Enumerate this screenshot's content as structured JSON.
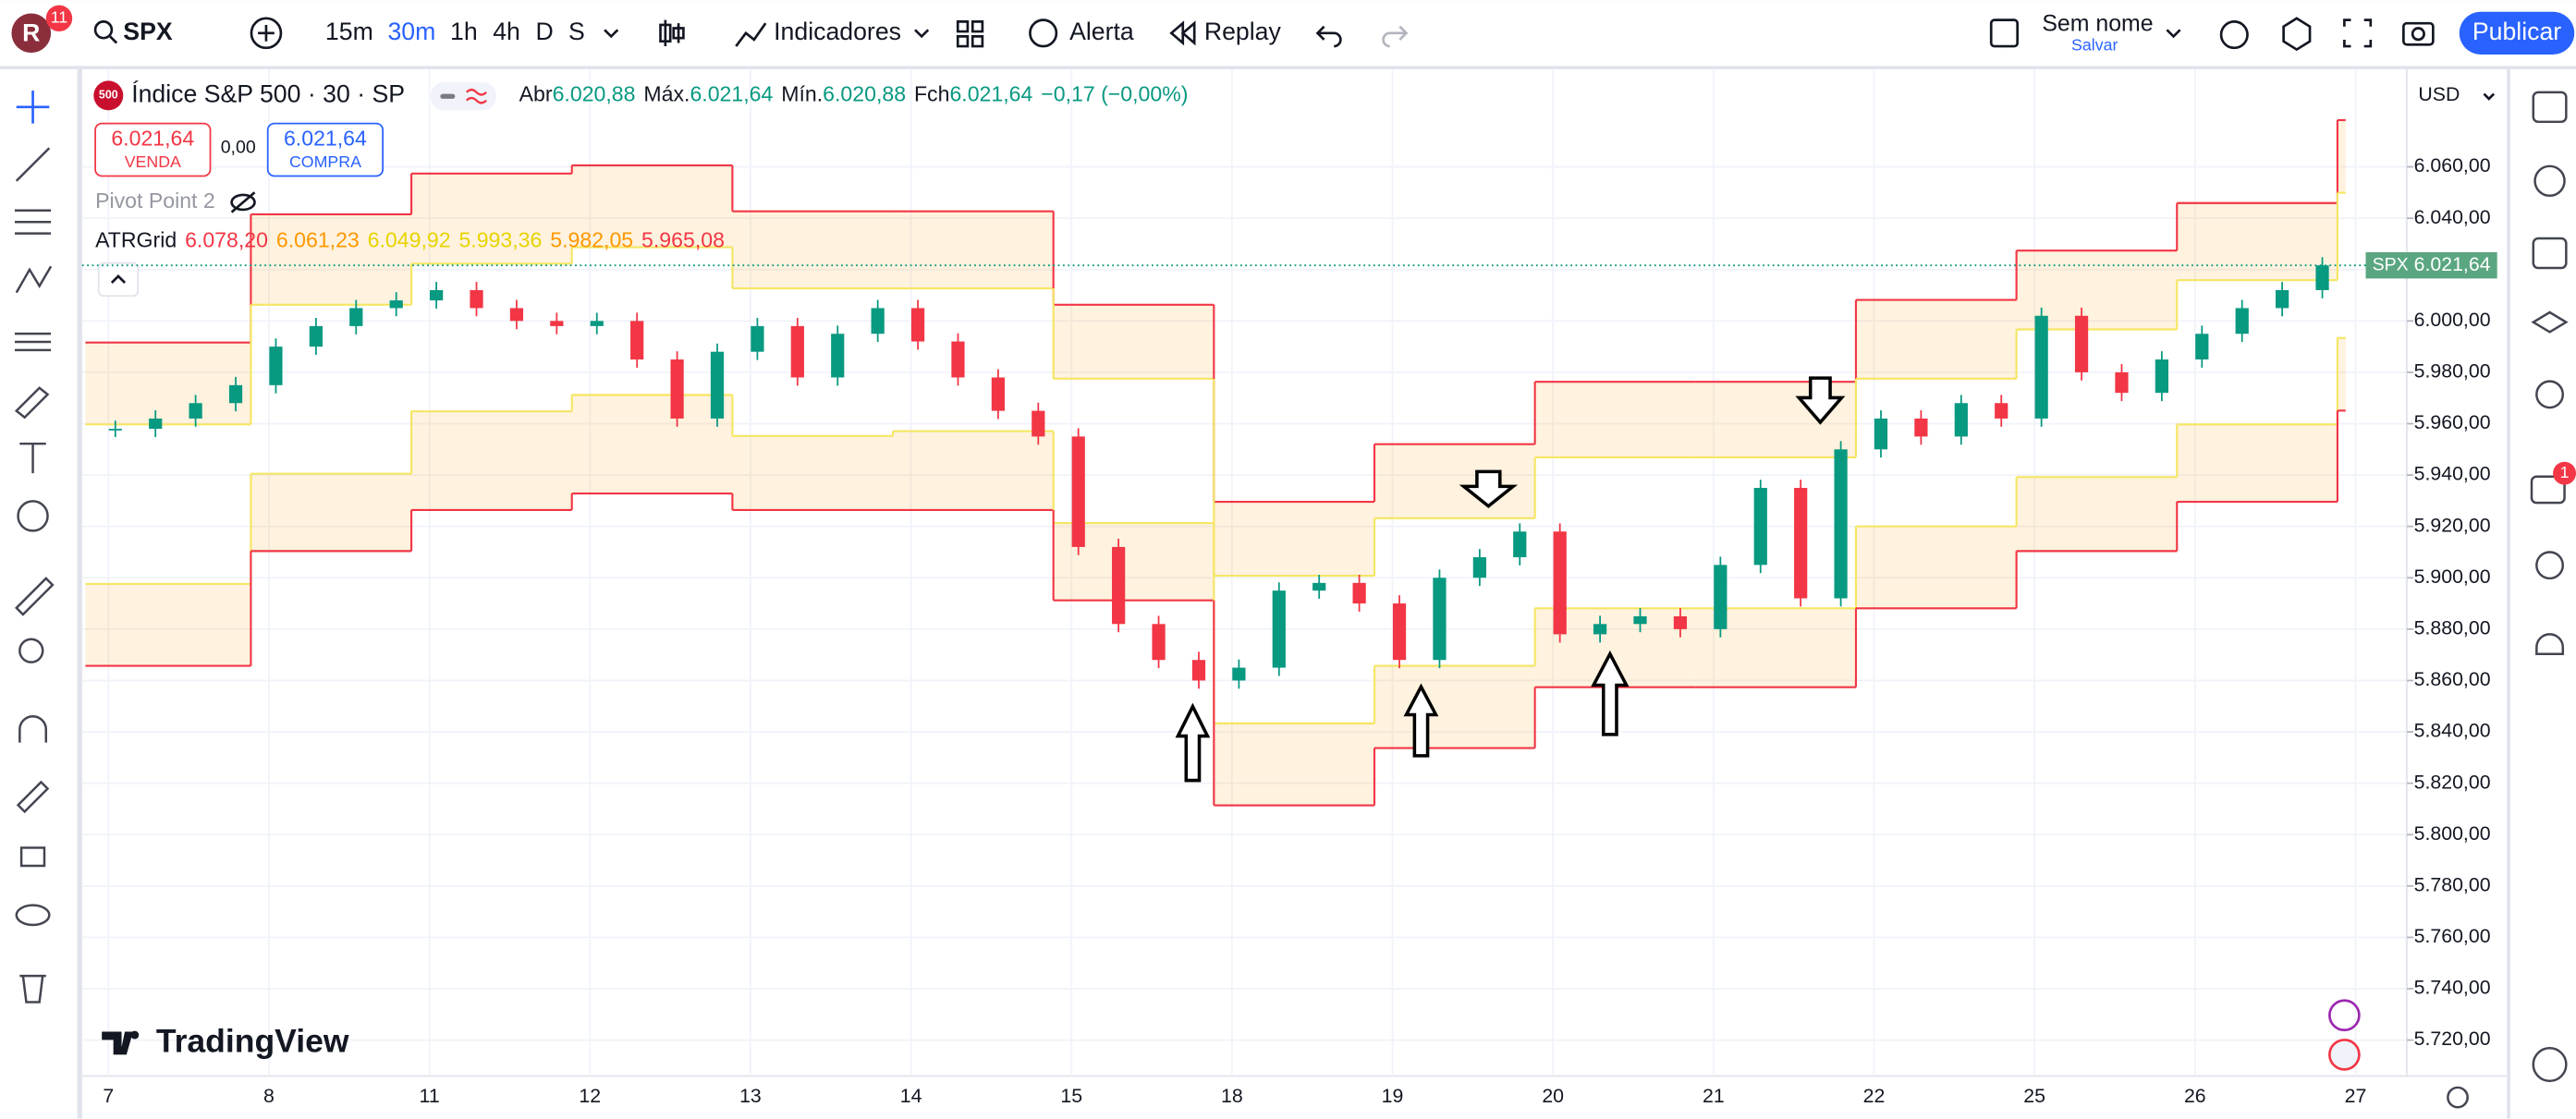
{
  "toolbar": {
    "avatar": "R",
    "badge": "11",
    "symbol": "SPX",
    "intervals": [
      "15m",
      "30m",
      "1h",
      "4h",
      "D",
      "S"
    ],
    "indicators": "Indicadores",
    "alert": "Alerta",
    "replay": "Replay",
    "layout_name": "Sem nome",
    "save": "Salvar",
    "publish": "Publicar",
    "notifications": "1"
  },
  "legend": {
    "icon": "500",
    "title": "Índice S&P 500 · 30 · SP",
    "open_label": "Abr",
    "open": "6.020,88",
    "high_label": "Máx.",
    "high": "6.021,64",
    "low_label": "Mín.",
    "low": "6.020,88",
    "close_label": "Fch",
    "close": "6.021,64",
    "change": "−0,17 (−0,00%)",
    "sell_price": "6.021,64",
    "sell": "VENDA",
    "spread": "0,00",
    "buy_price": "6.021,64",
    "buy": "COMPRA",
    "pivot": "Pivot Point 2",
    "atr_name": "ATRGrid",
    "atr_values": [
      "6.078,20",
      "6.061,23",
      "6.049,92",
      "5.993,36",
      "5.982,05",
      "5.965,08"
    ]
  },
  "chart_data": {
    "type": "candlestick",
    "symbol": "SPX",
    "currency": "USD",
    "logo": "TradingView",
    "date_labels": [
      "7",
      "8",
      "11",
      "12",
      "13",
      "14",
      "15",
      "18",
      "19",
      "20",
      "21",
      "22",
      "25",
      "26",
      "27"
    ],
    "values": [
      5958,
      5962,
      5968,
      5975,
      5990,
      5998,
      6005,
      6008,
      6012,
      6005,
      6000,
      5998,
      6000,
      5985,
      5962,
      5988,
      5998,
      5978,
      5995,
      6005,
      5992,
      5978,
      5965,
      5955,
      5912,
      5882,
      5868,
      5860,
      5865,
      5895,
      5898,
      5890,
      5868,
      5900,
      5908,
      5918,
      5878,
      5882,
      5885,
      5880,
      5905,
      5935,
      5892,
      5950,
      5962,
      5955,
      5968,
      5962,
      6002,
      5980,
      5972,
      5985,
      5995,
      6005,
      6012,
      6021.64
    ],
    "up_color": "#089981",
    "down_color": "#f23645",
    "ylim": [
      5706,
      6098
    ],
    "yticks": [
      {
        "value": 6060,
        "label": "6.060,00"
      },
      {
        "value": 6040,
        "label": "6.040,00"
      },
      {
        "value": 6020,
        "label": "6.020,00"
      },
      {
        "value": 6000,
        "label": "6.000,00"
      },
      {
        "value": 5980,
        "label": "5.980,00"
      },
      {
        "value": 5960,
        "label": "5.960,00"
      },
      {
        "value": 5940,
        "label": "5.940,00"
      },
      {
        "value": 5920,
        "label": "5.920,00"
      },
      {
        "value": 5900,
        "label": "5.900,00"
      },
      {
        "value": 5880,
        "label": "5.880,00"
      },
      {
        "value": 5860,
        "label": "5.860,00"
      },
      {
        "value": 5840,
        "label": "5.840,00"
      },
      {
        "value": 5820,
        "label": "5.820,00"
      },
      {
        "value": 5800,
        "label": "5.800,00"
      },
      {
        "value": 5780,
        "label": "5.780,00"
      },
      {
        "value": 5760,
        "label": "5.760,00"
      },
      {
        "value": 5740,
        "label": "5.740,00"
      },
      {
        "value": 5720,
        "label": "5.720,00"
      }
    ],
    "grid": true,
    "last_price": {
      "value": 6021.64,
      "label": "6.021,64"
    },
    "bands": {
      "upper_top": [
        5991.6,
        6041.5,
        6057.4,
        6060.6,
        6042.7,
        6042.7,
        6006.3,
        5929.6,
        5952.0,
        5976.3,
        5976.3,
        6008.2,
        6027.4,
        6045.9,
        6078.2
      ],
      "upper_bottom": [
        5959.7,
        6006.3,
        6022.3,
        6028.7,
        6012.7,
        6012.7,
        5977.5,
        5900.8,
        5923.2,
        5946.9,
        5946.9,
        5977.5,
        5996.7,
        6015.9,
        6049.92
      ],
      "lower_top": [
        5897.6,
        5940.5,
        5964.8,
        5971.2,
        5955.2,
        5957.1,
        5921.3,
        5843.3,
        5865.7,
        5888.1,
        5888.1,
        5920.0,
        5939.2,
        5959.7,
        5993.36
      ],
      "lower_bottom": [
        5865.7,
        5910.4,
        5926.4,
        5932.8,
        5926.4,
        5926.4,
        5891.2,
        5811.4,
        5833.7,
        5857.4,
        5857.4,
        5888.1,
        5910.4,
        5929.6,
        5965.08
      ],
      "line_color": "#f23645",
      "fill_color": "#ff9800",
      "inner_color": "#f5e663"
    }
  }
}
